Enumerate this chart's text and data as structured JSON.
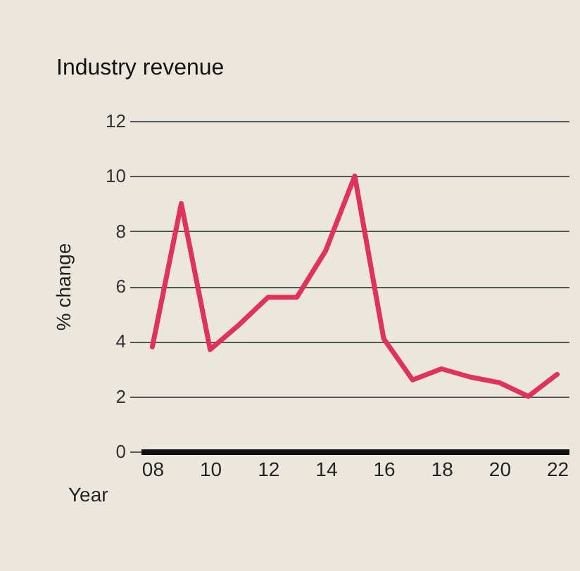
{
  "chart_data": {
    "type": "line",
    "title": "Industry revenue",
    "xlabel": "Year",
    "ylabel": "% change",
    "x": [
      2008,
      2009,
      2010,
      2011,
      2012,
      2013,
      2014,
      2015,
      2016,
      2017,
      2018,
      2019,
      2020,
      2021,
      2022
    ],
    "series": [
      {
        "color": "#e0325a",
        "values": [
          3.8,
          9.0,
          3.7,
          4.6,
          5.6,
          5.6,
          7.3,
          10.0,
          4.1,
          2.6,
          3.0,
          2.7,
          2.5,
          2.0,
          2.8
        ]
      }
    ],
    "xlim": [
      2007.6,
      2022.4
    ],
    "xticks": [
      {
        "value": 2008,
        "label": "08"
      },
      {
        "value": 2010,
        "label": "10"
      },
      {
        "value": 2012,
        "label": "12"
      },
      {
        "value": 2014,
        "label": "14"
      },
      {
        "value": 2016,
        "label": "16"
      },
      {
        "value": 2018,
        "label": "18"
      },
      {
        "value": 2020,
        "label": "20"
      },
      {
        "value": 2022,
        "label": "22"
      }
    ],
    "ylim": [
      0,
      12
    ],
    "yticks": [
      0,
      2,
      4,
      6,
      8,
      10,
      12
    ],
    "grid": "y",
    "marker": "none",
    "line_style": "solid"
  }
}
